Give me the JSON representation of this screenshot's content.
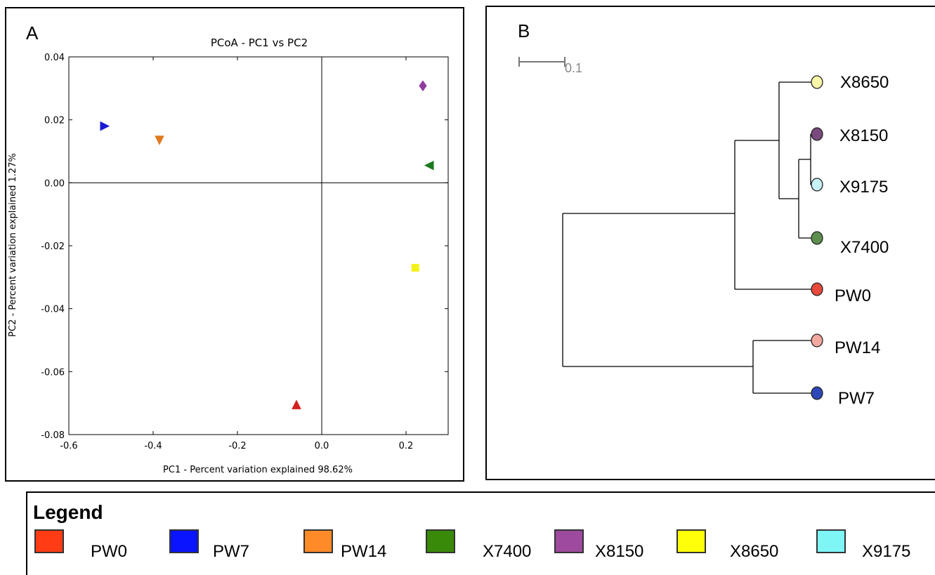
{
  "panel_a": {
    "letter": "A",
    "chart_data": {
      "type": "scatter",
      "title": "PCoA - PC1 vs PC2",
      "xlabel": "PC1 - Percent variation explained 98.62%",
      "ylabel": "PC2 - Percent variation explained 1.27%",
      "xlim": [
        -0.6,
        0.3
      ],
      "ylim": [
        -0.08,
        0.04
      ],
      "xticks": [
        "-0.6",
        "-0.4",
        "-0.2",
        "0.0",
        "0.2"
      ],
      "yticks": [
        "0.04",
        "0.02",
        "0.00",
        "-0.02",
        "-0.04",
        "-0.06",
        "-0.08"
      ],
      "xtick_values": [
        -0.6,
        -0.4,
        -0.2,
        0.0,
        0.2
      ],
      "ytick_values": [
        0.04,
        0.02,
        0.0,
        -0.02,
        -0.04,
        -0.06,
        -0.08
      ],
      "grid": false,
      "points": [
        {
          "sample": "PW7",
          "x": -0.515,
          "y": 0.018,
          "marker": "triangle-right",
          "color": "#1a1ad6"
        },
        {
          "sample": "PW14",
          "x": -0.385,
          "y": 0.0135,
          "marker": "triangle-down",
          "color": "#e07a1f"
        },
        {
          "sample": "X8150",
          "x": 0.24,
          "y": 0.0308,
          "marker": "diamond",
          "color": "#8e3c9e"
        },
        {
          "sample": "X7400",
          "x": 0.255,
          "y": 0.0055,
          "marker": "triangle-left",
          "color": "#1d7a1d"
        },
        {
          "sample": "X8650",
          "x": 0.222,
          "y": -0.027,
          "marker": "square",
          "color": "#f2f21a"
        },
        {
          "sample": "PW0",
          "x": -0.06,
          "y": -0.0705,
          "marker": "triangle-up",
          "color": "#d42020"
        }
      ]
    }
  },
  "panel_b": {
    "letter": "B",
    "scale_label": "0.1",
    "chart_data": {
      "type": "dendrogram",
      "leaves": [
        {
          "label": "X8650",
          "color": "#fbf7a8"
        },
        {
          "label": "X8150",
          "color": "#7a4a7e"
        },
        {
          "label": "X9175",
          "color": "#c6f2f6"
        },
        {
          "label": "X7400",
          "color": "#5e8f4e"
        },
        {
          "label": "PW0",
          "color": "#e84a3c"
        },
        {
          "label": "PW14",
          "color": "#f4a8a0"
        },
        {
          "label": "PW7",
          "color": "#2c48b8"
        }
      ]
    }
  },
  "legend": {
    "title": "Legend",
    "items": [
      {
        "label": "PW0",
        "color": "#ff3c14"
      },
      {
        "label": "PW7",
        "color": "#0a14ff"
      },
      {
        "label": "PW14",
        "color": "#ff8a28"
      },
      {
        "label": "X7400",
        "color": "#3a8a0a"
      },
      {
        "label": "X8150",
        "color": "#9e4a9e"
      },
      {
        "label": "X8650",
        "color": "#ffff0a"
      },
      {
        "label": "X9175",
        "color": "#7ef6f6"
      }
    ]
  }
}
